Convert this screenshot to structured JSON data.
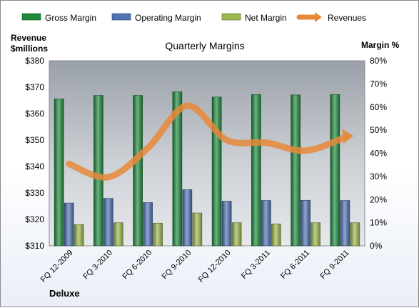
{
  "chart_data": {
    "type": "bar",
    "title": "Quarterly Margins",
    "company": "Deluxe",
    "left_axis_label": [
      "Revenue",
      "$millions"
    ],
    "right_axis_label": "Margin %",
    "categories": [
      "FQ 12-2009",
      "FQ 3-2010",
      "FQ 6-2010",
      "FQ 9-2010",
      "FQ 12-2010",
      "FQ 3-2011",
      "FQ 6-2011",
      "FQ 9-2011"
    ],
    "y_left": {
      "min": 310,
      "max": 380,
      "step": 10,
      "ticks": [
        "$310",
        "$320",
        "$330",
        "$340",
        "$350",
        "$360",
        "$370",
        "$380"
      ]
    },
    "y_right": {
      "min": 0,
      "max": 80,
      "step": 10,
      "ticks": [
        "0%",
        "10%",
        "20%",
        "30%",
        "40%",
        "50%",
        "60%",
        "70%",
        "80%"
      ]
    },
    "series": [
      {
        "name": "Gross Margin",
        "kind": "bar",
        "axis": "right",
        "color": "#1f8a3e",
        "values": [
          63.5,
          65.0,
          65.0,
          66.6,
          64.3,
          65.4,
          65.2,
          65.4
        ]
      },
      {
        "name": "Operating Margin",
        "kind": "bar",
        "axis": "right",
        "color": "#4f73b3",
        "values": [
          18.5,
          20.5,
          18.7,
          24.3,
          19.3,
          19.6,
          19.7,
          19.6
        ]
      },
      {
        "name": "Net Margin",
        "kind": "bar",
        "axis": "right",
        "color": "#9cb84f",
        "values": [
          9.2,
          10.0,
          9.8,
          14.2,
          10.0,
          9.5,
          10.0,
          10.0
        ]
      },
      {
        "name": "Revenues",
        "kind": "line",
        "axis": "left",
        "color": "#e8883a",
        "values": [
          341,
          336,
          347,
          363,
          350,
          349,
          346,
          351
        ]
      }
    ],
    "grid": false,
    "legend": "top"
  }
}
